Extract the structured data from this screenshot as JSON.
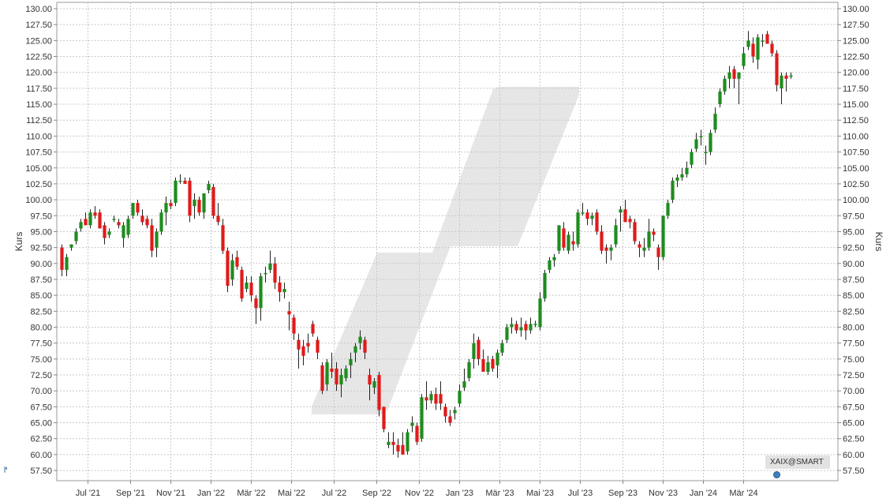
{
  "chart_data": {
    "type": "candlestick",
    "ylabel": "Kurs",
    "ylim": [
      55.0,
      130.0
    ],
    "y_ticks": [
      "130.00",
      "127.50",
      "125.00",
      "122.50",
      "120.00",
      "117.50",
      "115.00",
      "112.50",
      "110.00",
      "107.50",
      "105.00",
      "102.50",
      "100.00",
      "97.50",
      "95.00",
      "92.50",
      "90.00",
      "87.50",
      "85.00",
      "82.50",
      "80.00",
      "77.50",
      "75.00",
      "72.50",
      "70.00",
      "67.50",
      "65.00",
      "62.50",
      "60.00",
      "57.50"
    ],
    "x_ticks": [
      {
        "index": 5.5,
        "label": "Jul '21"
      },
      {
        "index": 14.5,
        "label": "Sep '21"
      },
      {
        "index": 23.0,
        "label": "Nov '21"
      },
      {
        "index": 31.5,
        "label": "Jan '22"
      },
      {
        "index": 40.0,
        "label": "Mär '22"
      },
      {
        "index": 48.5,
        "label": "Mai '22"
      },
      {
        "index": 57.5,
        "label": "Jul '22"
      },
      {
        "index": 66.5,
        "label": "Sep '22"
      },
      {
        "index": 75.5,
        "label": "Nov '22"
      },
      {
        "index": 84.0,
        "label": "Jan '23"
      },
      {
        "index": 92.5,
        "label": "Mär '23"
      },
      {
        "index": 101.0,
        "label": "Mai '23"
      },
      {
        "index": 109.5,
        "label": "Jul '23"
      },
      {
        "index": 118.5,
        "label": "Sep '23"
      },
      {
        "index": 127.0,
        "label": "Nov '23"
      },
      {
        "index": 135.5,
        "label": "Jan '24"
      },
      {
        "index": 144.0,
        "label": "Mär '24"
      }
    ],
    "colors": {
      "up": "#1e8c1e",
      "down": "#e01a1a",
      "grid": "#c8c8c8",
      "watermark": "#e6e6e6"
    },
    "candles": [
      [
        92.5,
        93.0,
        88.0,
        89.0
      ],
      [
        89.0,
        91.5,
        88.0,
        91.0
      ],
      [
        92.5,
        93.0,
        92.0,
        93.0
      ],
      [
        93.5,
        95.5,
        93.0,
        95.0
      ],
      [
        95.5,
        97.0,
        95.0,
        96.5
      ],
      [
        97.0,
        98.0,
        96.0,
        96.0
      ],
      [
        96.0,
        98.5,
        95.5,
        98.0
      ],
      [
        98.0,
        99.0,
        97.0,
        97.5
      ],
      [
        98.0,
        98.5,
        95.5,
        95.5
      ],
      [
        96.0,
        96.5,
        93.0,
        94.0
      ],
      [
        94.5,
        95.5,
        94.0,
        95.0
      ],
      [
        97.0,
        97.5,
        96.5,
        97.0
      ],
      [
        96.5,
        97.0,
        95.5,
        96.0
      ],
      [
        94.0,
        96.5,
        92.5,
        96.0
      ],
      [
        94.5,
        97.5,
        94.0,
        97.0
      ],
      [
        97.5,
        99.5,
        97.0,
        99.5
      ],
      [
        99.5,
        100.0,
        97.5,
        98.0
      ],
      [
        97.5,
        98.5,
        96.0,
        96.5
      ],
      [
        97.0,
        97.5,
        95.5,
        96.0
      ],
      [
        96.0,
        97.0,
        91.0,
        92.0
      ],
      [
        92.5,
        95.5,
        91.0,
        95.0
      ],
      [
        95.0,
        98.5,
        94.5,
        98.0
      ],
      [
        98.0,
        100.5,
        96.0,
        99.5
      ],
      [
        99.5,
        100.0,
        98.5,
        99.0
      ],
      [
        99.5,
        103.5,
        99.0,
        103.0
      ],
      [
        103.0,
        104.0,
        102.5,
        103.0
      ],
      [
        103.0,
        103.5,
        102.5,
        102.5
      ],
      [
        103.0,
        103.5,
        96.5,
        97.5
      ],
      [
        99.0,
        101.0,
        97.0,
        100.0
      ],
      [
        100.0,
        100.5,
        97.5,
        98.0
      ],
      [
        98.0,
        101.0,
        97.0,
        101.0
      ],
      [
        101.5,
        103.0,
        101.0,
        102.5
      ],
      [
        102.0,
        102.5,
        97.0,
        97.5
      ],
      [
        97.5,
        99.5,
        96.0,
        96.5
      ],
      [
        96.0,
        97.0,
        91.5,
        92.0
      ],
      [
        92.0,
        92.5,
        85.5,
        86.5
      ],
      [
        87.5,
        91.5,
        86.5,
        90.5
      ],
      [
        91.0,
        92.0,
        89.0,
        89.5
      ],
      [
        89.0,
        89.5,
        84.0,
        84.5
      ],
      [
        86.0,
        88.0,
        85.5,
        87.0
      ],
      [
        87.0,
        88.0,
        84.0,
        85.0
      ],
      [
        84.5,
        85.0,
        80.5,
        83.0
      ],
      [
        83.0,
        88.5,
        81.0,
        88.0
      ],
      [
        88.5,
        89.5,
        87.0,
        88.5
      ],
      [
        89.0,
        92.0,
        88.5,
        90.0
      ],
      [
        90.0,
        91.0,
        86.0,
        87.0
      ],
      [
        87.0,
        88.0,
        84.0,
        85.5
      ],
      [
        85.5,
        87.0,
        84.5,
        86.0
      ],
      [
        82.5,
        84.0,
        79.5,
        82.0
      ],
      [
        81.5,
        82.0,
        78.0,
        79.0
      ],
      [
        78.0,
        79.0,
        73.5,
        76.5
      ],
      [
        77.0,
        78.0,
        74.0,
        75.5
      ],
      [
        77.5,
        79.0,
        76.0,
        77.0
      ],
      [
        80.5,
        81.0,
        78.5,
        79.0
      ],
      [
        78.0,
        78.5,
        75.0,
        76.0
      ],
      [
        74.0,
        74.5,
        69.5,
        70.0
      ],
      [
        71.0,
        75.0,
        70.0,
        74.5
      ],
      [
        73.5,
        76.0,
        72.0,
        73.0
      ],
      [
        73.5,
        74.5,
        70.0,
        71.0
      ],
      [
        71.0,
        73.5,
        69.0,
        72.5
      ],
      [
        72.0,
        74.0,
        71.5,
        73.5
      ],
      [
        74.0,
        76.0,
        72.0,
        75.0
      ],
      [
        76.0,
        77.5,
        74.5,
        77.0
      ],
      [
        77.5,
        79.5,
        76.5,
        78.5
      ],
      [
        78.0,
        78.5,
        75.0,
        76.0
      ],
      [
        72.5,
        73.5,
        68.5,
        71.0
      ],
      [
        70.5,
        72.0,
        69.5,
        71.5
      ],
      [
        72.5,
        73.0,
        66.0,
        67.0
      ],
      [
        67.5,
        67.5,
        63.5,
        64.0
      ],
      [
        61.5,
        63.5,
        61.0,
        62.0
      ],
      [
        62.0,
        63.5,
        60.0,
        61.5
      ],
      [
        61.5,
        62.5,
        59.5,
        60.5
      ],
      [
        61.5,
        63.5,
        60.0,
        60.0
      ],
      [
        60.5,
        64.0,
        60.0,
        63.5
      ],
      [
        64.5,
        66.0,
        63.5,
        65.0
      ],
      [
        64.5,
        65.0,
        61.5,
        62.0
      ],
      [
        62.5,
        69.5,
        62.0,
        69.0
      ],
      [
        69.0,
        71.5,
        67.0,
        68.5
      ],
      [
        68.5,
        70.0,
        68.0,
        69.5
      ],
      [
        69.5,
        70.5,
        67.0,
        68.0
      ],
      [
        69.5,
        71.5,
        67.0,
        68.0
      ],
      [
        67.5,
        68.0,
        65.0,
        66.0
      ],
      [
        66.0,
        67.0,
        64.5,
        65.0
      ],
      [
        66.5,
        67.5,
        65.5,
        67.0
      ],
      [
        68.0,
        71.0,
        67.5,
        70.0
      ],
      [
        70.5,
        73.5,
        70.0,
        71.5
      ],
      [
        72.0,
        75.0,
        71.5,
        74.5
      ],
      [
        75.0,
        79.0,
        73.5,
        77.5
      ],
      [
        78.0,
        78.5,
        74.0,
        75.0
      ],
      [
        75.0,
        76.5,
        73.0,
        73.0
      ],
      [
        73.0,
        75.5,
        72.5,
        74.5
      ],
      [
        75.0,
        75.5,
        73.0,
        73.5
      ],
      [
        74.0,
        76.5,
        72.0,
        76.0
      ],
      [
        76.0,
        78.0,
        75.5,
        77.5
      ],
      [
        78.0,
        80.5,
        77.5,
        80.0
      ],
      [
        80.0,
        81.5,
        79.0,
        80.5
      ],
      [
        80.5,
        81.0,
        79.0,
        79.5
      ],
      [
        79.5,
        81.5,
        78.5,
        80.0
      ],
      [
        80.5,
        81.0,
        78.0,
        79.5
      ],
      [
        79.5,
        81.5,
        79.0,
        80.5
      ],
      [
        80.5,
        81.0,
        80.0,
        80.5
      ],
      [
        80.0,
        85.5,
        79.5,
        84.5
      ],
      [
        84.5,
        89.0,
        84.0,
        88.5
      ],
      [
        89.0,
        91.0,
        88.5,
        90.5
      ],
      [
        90.5,
        91.5,
        89.5,
        91.0
      ],
      [
        92.0,
        96.0,
        91.5,
        96.0
      ],
      [
        95.5,
        96.5,
        92.0,
        92.5
      ],
      [
        92.0,
        95.0,
        91.5,
        94.5
      ],
      [
        93.5,
        95.0,
        92.0,
        93.0
      ],
      [
        93.0,
        98.5,
        92.5,
        98.0
      ],
      [
        98.0,
        99.5,
        97.5,
        98.0
      ],
      [
        98.0,
        98.5,
        96.0,
        97.0
      ],
      [
        97.0,
        98.0,
        96.0,
        97.5
      ],
      [
        98.0,
        98.5,
        94.5,
        95.0
      ],
      [
        95.0,
        96.0,
        91.5,
        92.0
      ],
      [
        92.5,
        93.0,
        90.0,
        92.0
      ],
      [
        92.0,
        93.0,
        90.5,
        92.5
      ],
      [
        93.0,
        97.0,
        92.5,
        96.0
      ],
      [
        98.0,
        99.0,
        95.0,
        98.5
      ],
      [
        98.5,
        100.0,
        96.5,
        96.5
      ],
      [
        97.0,
        97.5,
        95.5,
        96.5
      ],
      [
        96.5,
        97.0,
        93.0,
        93.5
      ],
      [
        93.0,
        93.5,
        91.0,
        92.5
      ],
      [
        92.0,
        94.0,
        91.0,
        92.5
      ],
      [
        92.5,
        97.0,
        92.0,
        95.0
      ],
      [
        95.0,
        95.5,
        93.5,
        94.5
      ],
      [
        92.5,
        93.0,
        89.0,
        91.0
      ],
      [
        91.0,
        97.5,
        90.5,
        97.5
      ],
      [
        97.5,
        100.0,
        97.0,
        99.5
      ],
      [
        100.0,
        103.5,
        99.5,
        103.0
      ],
      [
        103.0,
        104.0,
        102.0,
        103.5
      ],
      [
        103.5,
        105.0,
        103.0,
        104.0
      ],
      [
        104.0,
        106.0,
        103.5,
        105.0
      ],
      [
        105.5,
        108.0,
        105.0,
        107.5
      ],
      [
        108.0,
        110.5,
        107.5,
        109.5
      ],
      [
        110.0,
        111.0,
        108.5,
        110.0
      ],
      [
        107.5,
        108.5,
        105.5,
        107.5
      ],
      [
        107.5,
        111.0,
        107.0,
        110.5
      ],
      [
        111.0,
        114.5,
        110.5,
        113.5
      ],
      [
        115.0,
        117.5,
        114.5,
        117.0
      ],
      [
        117.0,
        119.5,
        116.5,
        119.0
      ],
      [
        119.0,
        121.0,
        117.5,
        120.0
      ],
      [
        120.5,
        121.0,
        117.5,
        119.0
      ],
      [
        119.0,
        120.0,
        115.0,
        120.0
      ],
      [
        121.0,
        124.0,
        120.5,
        123.0
      ],
      [
        124.0,
        126.5,
        123.5,
        125.0
      ],
      [
        124.5,
        125.5,
        121.5,
        122.5
      ],
      [
        122.0,
        126.0,
        120.5,
        125.5
      ],
      [
        125.0,
        126.0,
        124.0,
        125.0
      ],
      [
        126.0,
        126.5,
        124.5,
        124.5
      ],
      [
        124.5,
        125.0,
        122.5,
        123.0
      ],
      [
        123.0,
        123.5,
        117.0,
        118.0
      ],
      [
        117.5,
        120.0,
        115.0,
        119.5
      ],
      [
        119.5,
        120.0,
        117.0,
        119.0
      ],
      [
        119.5,
        120.0,
        119.0,
        119.5
      ]
    ]
  },
  "source_badge": {
    "label": "XAIX@SMART"
  },
  "corner_mark": {
    "label": "⁋"
  }
}
